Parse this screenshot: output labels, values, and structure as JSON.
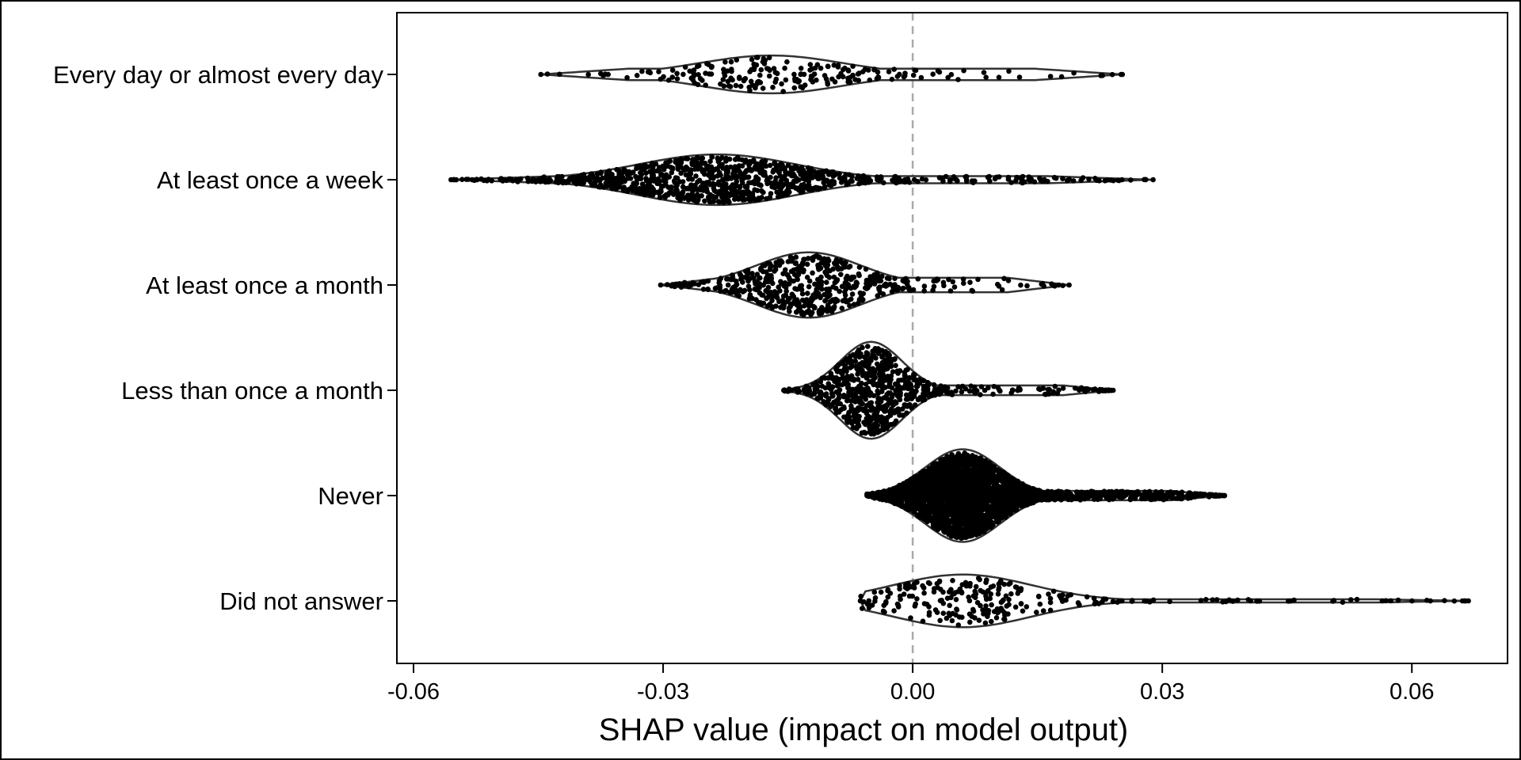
{
  "chart_data": {
    "type": "violin",
    "xlabel": "SHAP value (impact on model output)",
    "ylabel": "",
    "xlim": [
      -0.062,
      0.0715
    ],
    "xticks": [
      -0.06,
      -0.03,
      0.0,
      0.03,
      0.06
    ],
    "xtick_labels": [
      "-0.06",
      "-0.03",
      "0.00",
      "0.03",
      "0.06"
    ],
    "reference_line": {
      "x": 0.0,
      "style": "dashed",
      "color": "#aaaaaa"
    },
    "grid": false,
    "colors": {
      "violin_outline": "#333333",
      "points": "#000000",
      "frame": "#000000"
    },
    "categories": [
      {
        "name": "Every day or almost every day",
        "min": -0.0447,
        "max": 0.0252,
        "mode": -0.017,
        "spread": 0.0085,
        "max_half_width": 0.18,
        "tail_level": 0.3,
        "point_count": 210
      },
      {
        "name": "At least once a week",
        "min": -0.0555,
        "max": 0.0289,
        "mode": -0.0235,
        "spread": 0.0095,
        "max_half_width": 0.24,
        "tail_level": 0.14,
        "point_count": 1000
      },
      {
        "name": "At least once a month",
        "min": -0.0303,
        "max": 0.0188,
        "mode": -0.0125,
        "spread": 0.0062,
        "max_half_width": 0.31,
        "tail_level": 0.22,
        "point_count": 520
      },
      {
        "name": "Less than once a month",
        "min": -0.0155,
        "max": 0.0241,
        "mode": -0.005,
        "spread": 0.0037,
        "max_half_width": 0.46,
        "tail_level": 0.1,
        "point_count": 700
      },
      {
        "name": "Never",
        "min": -0.0055,
        "max": 0.0375,
        "mode": 0.006,
        "spread": 0.0045,
        "max_half_width": 0.44,
        "tail_level": 0.1,
        "point_count": 2600
      },
      {
        "name": "Did not answer",
        "min": -0.0063,
        "max": 0.0668,
        "mode": 0.006,
        "spread": 0.0082,
        "max_half_width": 0.25,
        "tail_level": 0.06,
        "point_count": 260
      }
    ]
  }
}
